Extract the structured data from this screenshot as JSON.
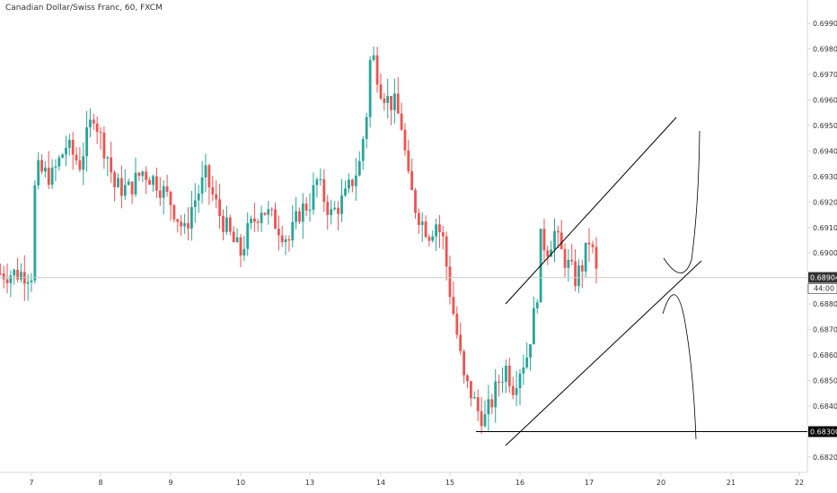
{
  "header": {
    "title": "Canadian Dollar/Swiss Franc, 60, FXCM"
  },
  "colors": {
    "up": "#26a69a",
    "down": "#ef5350",
    "axis": "#d9d9d9",
    "text": "#333333",
    "current_price_line": "#cccccc",
    "current_price_label_bg": "#333333",
    "current_price_label_fg": "#ffffff"
  },
  "chart_data": {
    "type": "candlestick",
    "title": "Canadian Dollar/Swiss Franc, 60, FXCM",
    "grid": false,
    "ylim": [
      0.6817,
      0.6998
    ],
    "x_ticks": [
      "7",
      "8",
      "9",
      "10",
      "13",
      "14",
      "15",
      "16",
      "17",
      "20",
      "21",
      "22"
    ],
    "y_ticks": [
      "0.69900",
      "0.69800",
      "0.69700",
      "0.69600",
      "0.69500",
      "0.69400",
      "0.69300",
      "0.69200",
      "0.69100",
      "0.69000",
      "0.68900",
      "0.68800",
      "0.68700",
      "0.68600",
      "0.68500",
      "0.68400",
      "0.68300",
      "0.68200"
    ],
    "current_price": "0.68904",
    "countdown": "44:00",
    "marked_level": "0.68300",
    "close_path": [
      [
        0.0,
        0.6918
      ],
      [
        0.1,
        0.6932
      ],
      [
        0.3,
        0.693
      ],
      [
        0.5,
        0.6942
      ],
      [
        0.7,
        0.6935
      ],
      [
        0.9,
        0.6955
      ],
      [
        1.0,
        0.6945
      ],
      [
        1.1,
        0.6938
      ],
      [
        1.2,
        0.6926
      ],
      [
        1.4,
        0.6925
      ],
      [
        1.6,
        0.6932
      ],
      [
        1.8,
        0.6928
      ],
      [
        2.0,
        0.692
      ],
      [
        2.2,
        0.6908
      ],
      [
        2.3,
        0.6918
      ],
      [
        2.5,
        0.693
      ],
      [
        2.7,
        0.6915
      ],
      [
        2.9,
        0.6904
      ],
      [
        3.0,
        0.69
      ],
      [
        3.1,
        0.6908
      ],
      [
        3.3,
        0.6918
      ],
      [
        3.5,
        0.6912
      ],
      [
        3.7,
        0.6905
      ],
      [
        3.85,
        0.6916
      ],
      [
        4.0,
        0.692
      ],
      [
        4.1,
        0.6928
      ],
      [
        4.3,
        0.6915
      ],
      [
        4.5,
        0.6922
      ],
      [
        4.7,
        0.6935
      ],
      [
        4.8,
        0.6955
      ],
      [
        4.85,
        0.6975
      ],
      [
        4.9,
        0.6976
      ],
      [
        5.0,
        0.6965
      ],
      [
        5.1,
        0.696
      ],
      [
        5.2,
        0.6958
      ],
      [
        5.3,
        0.695
      ],
      [
        5.4,
        0.6928
      ],
      [
        5.5,
        0.6918
      ],
      [
        5.6,
        0.6912
      ],
      [
        5.7,
        0.6908
      ],
      [
        5.8,
        0.6912
      ],
      [
        5.9,
        0.6905
      ],
      [
        6.0,
        0.6885
      ],
      [
        6.1,
        0.6868
      ],
      [
        6.2,
        0.685
      ],
      [
        6.3,
        0.6845
      ],
      [
        6.4,
        0.6838
      ],
      [
        6.5,
        0.6835
      ],
      [
        6.6,
        0.6842
      ],
      [
        6.7,
        0.685
      ],
      [
        6.8,
        0.6855
      ],
      [
        6.9,
        0.6848
      ],
      [
        7.0,
        0.6855
      ],
      [
        7.1,
        0.686
      ],
      [
        7.2,
        0.6875
      ],
      [
        7.25,
        0.6885
      ],
      [
        7.3,
        0.6905
      ],
      [
        7.4,
        0.6902
      ],
      [
        7.5,
        0.6908
      ],
      [
        7.6,
        0.69
      ],
      [
        7.7,
        0.6895
      ],
      [
        7.8,
        0.689
      ],
      [
        7.9,
        0.6895
      ],
      [
        8.0,
        0.6905
      ],
      [
        8.05,
        0.69
      ],
      [
        8.1,
        0.6892
      ]
    ],
    "price_range_visible": [
      0.6832,
      0.698
    ]
  }
}
